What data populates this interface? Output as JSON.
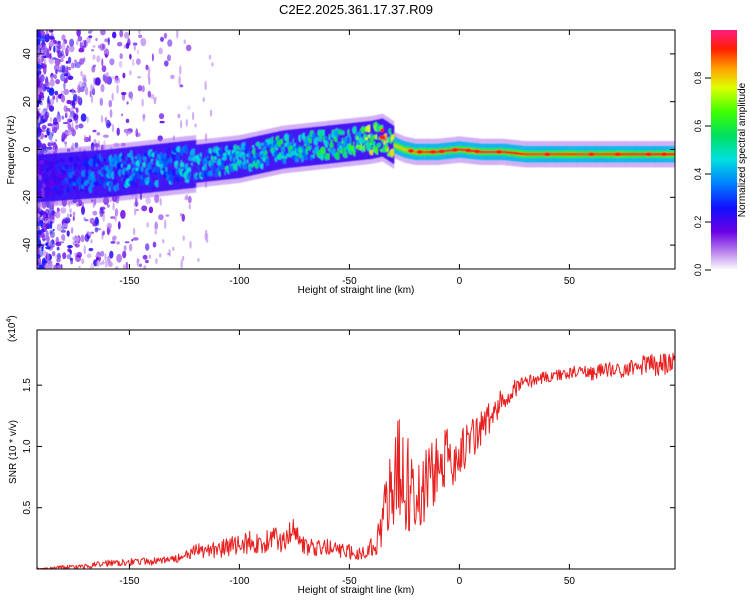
{
  "title": "C2E2.2025.361.17.37.R09",
  "chart_data": [
    {
      "type": "heatmap",
      "name": "spectrogram",
      "xlabel": "Height of straight line (km)",
      "ylabel": "Frequency (Hz)",
      "xlim": [
        -192,
        98
      ],
      "ylim": [
        -50,
        50
      ],
      "xticks": [
        -150,
        -100,
        -50,
        0,
        50
      ],
      "xtick_labels": [
        "-150",
        "-100",
        "-50",
        "0",
        "50"
      ],
      "yticks": [
        -40,
        -20,
        0,
        20,
        40
      ],
      "ytick_labels": [
        "-40",
        "-20",
        "0",
        "20",
        "40"
      ],
      "ridge": {
        "description": "Main spectral ridge (centre frequency in Hz vs height in km)",
        "x": [
          -190,
          -175,
          -160,
          -150,
          -140,
          -130,
          -120,
          -110,
          -100,
          -90,
          -80,
          -70,
          -60,
          -50,
          -40,
          -35,
          -30,
          -25,
          -20,
          -10,
          0,
          10,
          20,
          30,
          50,
          70,
          95
        ],
        "y": [
          -12,
          -11,
          -10,
          -9,
          -8,
          -7,
          -6,
          -5,
          -4,
          -2,
          0,
          1,
          2,
          3,
          4,
          5,
          2,
          0,
          -1,
          -1,
          0,
          -1,
          -1,
          -2,
          -2,
          -2,
          -2
        ],
        "peak_amplitude": [
          0.2,
          0.35,
          0.4,
          0.45,
          0.45,
          0.45,
          0.5,
          0.5,
          0.5,
          0.55,
          0.55,
          0.55,
          0.6,
          0.6,
          0.75,
          0.9,
          0.8,
          0.8,
          0.85,
          0.95,
          0.95,
          0.95,
          0.95,
          0.9,
          0.9,
          0.9,
          0.95
        ]
      },
      "colorbar": {
        "label": "Normalized spectral amplitude",
        "range": [
          0,
          1
        ],
        "ticks": [
          0.0,
          0.2,
          0.4,
          0.6,
          0.8
        ],
        "tick_labels": [
          "0.0",
          "0.2",
          "0.4",
          "0.6",
          "0.8"
        ]
      }
    },
    {
      "type": "line",
      "name": "snr",
      "xlabel": "Height of straight line (km)",
      "ylabel": "SNR (10 * v/v)",
      "multiplier_label": "(x10",
      "multiplier_exp": "4",
      "multiplier_close": ")",
      "xlim": [
        -192,
        98
      ],
      "ylim": [
        0,
        1.95
      ],
      "xticks": [
        -150,
        -100,
        -50,
        0,
        50
      ],
      "xtick_labels": [
        "-150",
        "-100",
        "-50",
        "0",
        "50"
      ],
      "yticks": [
        0.5,
        1.0,
        1.5
      ],
      "ytick_labels": [
        "0.5",
        "1.0",
        "1.5"
      ],
      "series": [
        {
          "name": "SNR",
          "color": "#e82020",
          "x": [
            -192,
            -180,
            -170,
            -160,
            -150,
            -140,
            -130,
            -125,
            -120,
            -115,
            -110,
            -105,
            -100,
            -95,
            -90,
            -85,
            -80,
            -75,
            -70,
            -65,
            -60,
            -55,
            -50,
            -45,
            -40,
            -38,
            -35,
            -32,
            -30,
            -28,
            -26,
            -24,
            -22,
            -20,
            -18,
            -16,
            -14,
            -12,
            -10,
            -8,
            -5,
            -2,
            0,
            2,
            5,
            8,
            10,
            12,
            15,
            18,
            20,
            25,
            30,
            35,
            40,
            45,
            50,
            55,
            60,
            65,
            70,
            75,
            80,
            85,
            88,
            90,
            95,
            98
          ],
          "values": [
            0.0,
            0.01,
            0.02,
            0.05,
            0.06,
            0.06,
            0.08,
            0.1,
            0.14,
            0.16,
            0.16,
            0.18,
            0.2,
            0.22,
            0.2,
            0.25,
            0.22,
            0.35,
            0.18,
            0.16,
            0.18,
            0.15,
            0.14,
            0.12,
            0.18,
            0.22,
            0.4,
            0.55,
            0.65,
            0.75,
            0.78,
            0.7,
            0.62,
            0.55,
            0.6,
            0.7,
            0.72,
            0.78,
            0.8,
            0.85,
            0.9,
            0.92,
            0.95,
            0.98,
            1.05,
            1.1,
            1.15,
            1.2,
            1.25,
            1.32,
            1.4,
            1.48,
            1.52,
            1.55,
            1.57,
            1.58,
            1.6,
            1.62,
            1.6,
            1.62,
            1.63,
            1.62,
            1.65,
            1.68,
            1.7,
            1.65,
            1.68,
            1.7
          ],
          "noise_amplitude": [
            0.0,
            0.02,
            0.02,
            0.03,
            0.03,
            0.03,
            0.03,
            0.04,
            0.06,
            0.08,
            0.08,
            0.08,
            0.09,
            0.1,
            0.08,
            0.1,
            0.09,
            0.1,
            0.08,
            0.07,
            0.07,
            0.06,
            0.06,
            0.06,
            0.08,
            0.12,
            0.2,
            0.35,
            0.45,
            0.5,
            0.5,
            0.45,
            0.4,
            0.35,
            0.35,
            0.35,
            0.33,
            0.3,
            0.28,
            0.28,
            0.25,
            0.22,
            0.2,
            0.2,
            0.18,
            0.17,
            0.16,
            0.15,
            0.14,
            0.12,
            0.1,
            0.08,
            0.06,
            0.05,
            0.05,
            0.05,
            0.05,
            0.05,
            0.06,
            0.06,
            0.06,
            0.07,
            0.08,
            0.09,
            0.12,
            0.1,
            0.08,
            0.08
          ]
        }
      ]
    }
  ]
}
